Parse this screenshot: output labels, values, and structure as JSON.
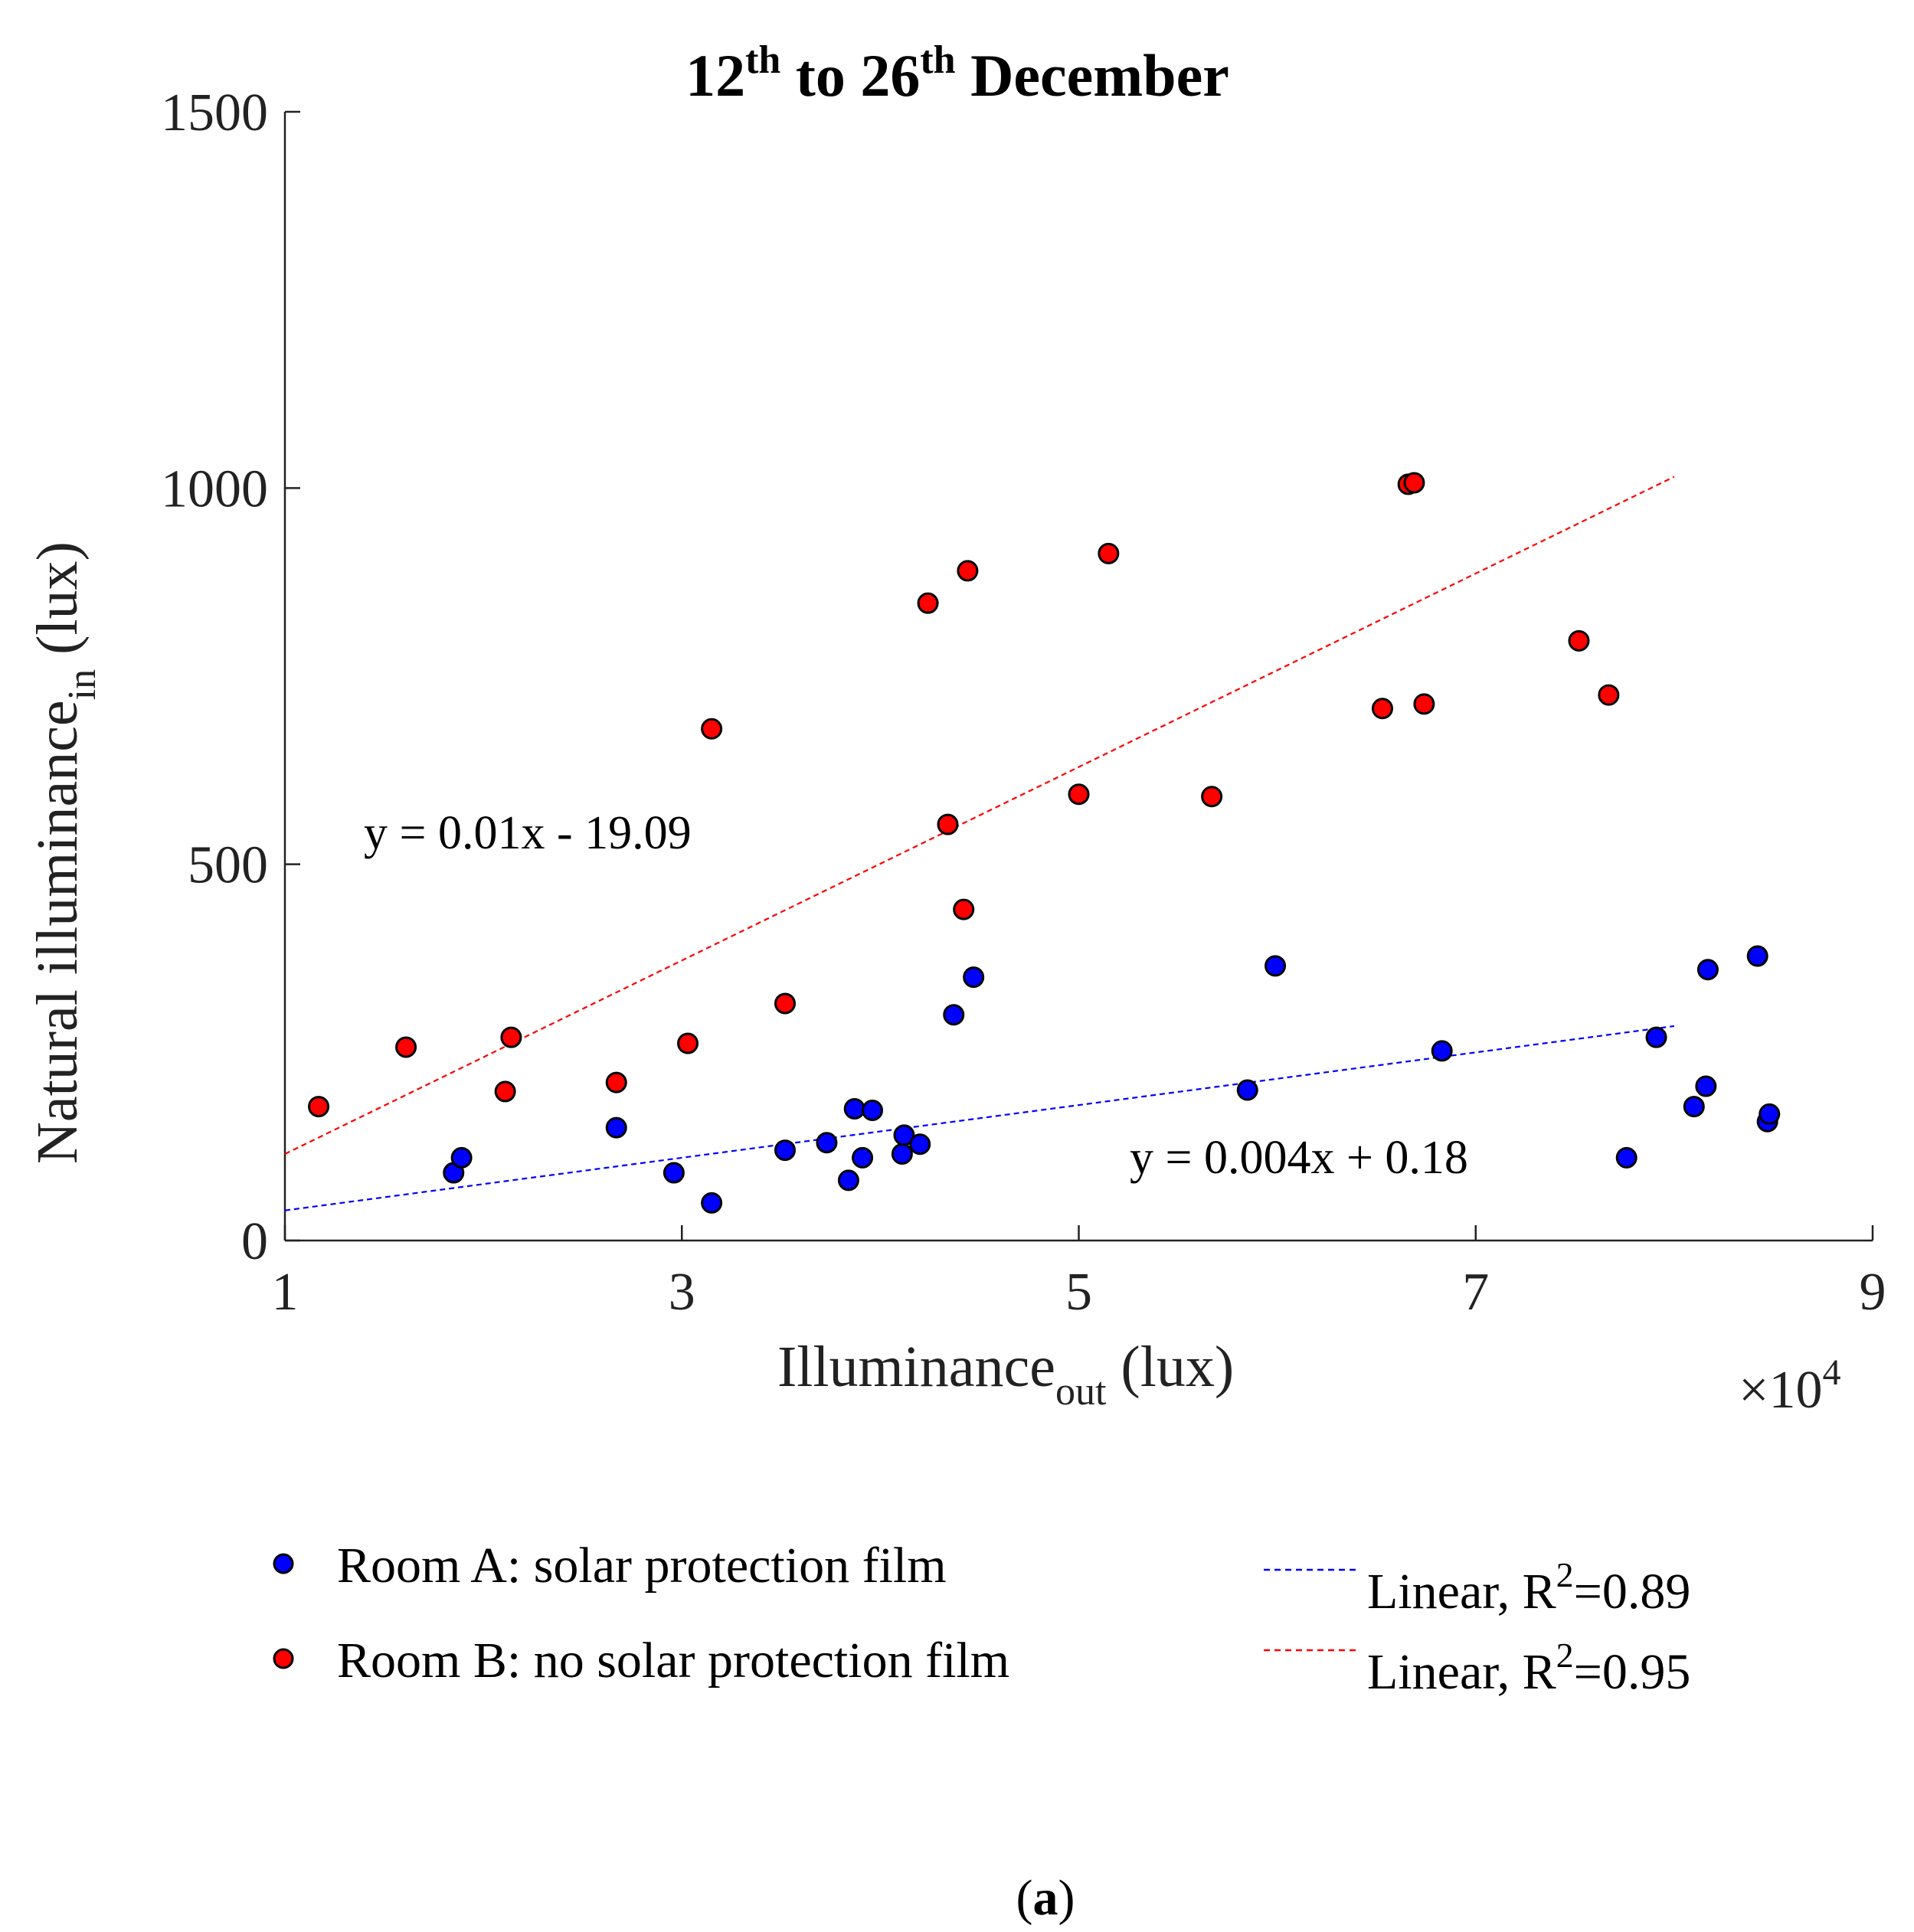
{
  "chart_data": {
    "type": "scatter",
    "title": {
      "parts": [
        {
          "text": "12",
          "sup": false
        },
        {
          "text": "th",
          "sup": true
        },
        {
          "text": " to 26",
          "sup": false
        },
        {
          "text": "th",
          "sup": true
        },
        {
          "text": " December",
          "sup": false
        }
      ]
    },
    "xlabel": {
      "main": "Illuminance",
      "sub": "out",
      "unit": " (lux)"
    },
    "ylabel": {
      "main": "Natural illuminance",
      "sub": "in",
      "unit": " (lux)"
    },
    "x_multiplier": {
      "times": "×10",
      "exponent": "4"
    },
    "xlim": [
      1,
      9
    ],
    "ylim": [
      0,
      1500
    ],
    "xticks": [
      1,
      3,
      5,
      7,
      9
    ],
    "yticks": [
      0,
      500,
      1000,
      1500
    ],
    "xtick_labels": [
      "1",
      "3",
      "5",
      "7",
      "9"
    ],
    "ytick_labels": [
      "0",
      "500",
      "1000",
      "1500"
    ],
    "series": [
      {
        "name": "Room A: solar protection film",
        "color": "#0000ff",
        "points": [
          [
            1.85,
            90
          ],
          [
            1.89,
            110
          ],
          [
            2.67,
            150
          ],
          [
            2.96,
            90
          ],
          [
            3.15,
            50
          ],
          [
            3.52,
            120
          ],
          [
            3.73,
            130
          ],
          [
            3.84,
            80
          ],
          [
            3.87,
            175
          ],
          [
            3.91,
            110
          ],
          [
            3.96,
            173
          ],
          [
            4.11,
            115
          ],
          [
            4.12,
            140
          ],
          [
            4.2,
            128
          ],
          [
            4.37,
            300
          ],
          [
            4.47,
            350
          ],
          [
            5.85,
            200
          ],
          [
            5.99,
            365
          ],
          [
            6.83,
            252
          ],
          [
            7.76,
            110
          ],
          [
            7.91,
            270
          ],
          [
            8.1,
            178
          ],
          [
            8.16,
            205
          ],
          [
            8.17,
            360
          ],
          [
            8.42,
            378
          ],
          [
            8.47,
            158
          ],
          [
            8.48,
            168
          ]
        ]
      },
      {
        "name": "Room B: no solar protection film",
        "color": "#ff0000",
        "points": [
          [
            1.17,
            178
          ],
          [
            1.61,
            257
          ],
          [
            2.11,
            198
          ],
          [
            2.14,
            270
          ],
          [
            2.67,
            210
          ],
          [
            3.03,
            262
          ],
          [
            3.15,
            680
          ],
          [
            3.52,
            315
          ],
          [
            4.24,
            847
          ],
          [
            4.34,
            553
          ],
          [
            4.42,
            440
          ],
          [
            4.44,
            890
          ],
          [
            5.0,
            593
          ],
          [
            5.15,
            913
          ],
          [
            5.67,
            590
          ],
          [
            6.53,
            707
          ],
          [
            6.66,
            1005
          ],
          [
            6.69,
            1007
          ],
          [
            6.74,
            713
          ],
          [
            7.52,
            797
          ],
          [
            7.67,
            725
          ]
        ]
      }
    ],
    "fits": [
      {
        "name": "Linear, R²=0.89",
        "label": "Linear, R",
        "sup": "2",
        "value": "=0.89",
        "equation": "y = 0.004x + 0.18",
        "color": "#0000ff",
        "x_range": [
          1,
          8
        ],
        "y_range": [
          40,
          285
        ]
      },
      {
        "name": "Linear, R²=0.95",
        "label": "Linear, R",
        "sup": "2",
        "value": "=0.95",
        "equation": "y = 0.01x - 19.09",
        "color": "#ff0000",
        "x_range": [
          1,
          8
        ],
        "y_range": [
          115,
          1015
        ]
      }
    ],
    "legend_placement": "bottom",
    "grid": false
  },
  "caption": {
    "open": "(",
    "letter": "a",
    "close": ")"
  }
}
